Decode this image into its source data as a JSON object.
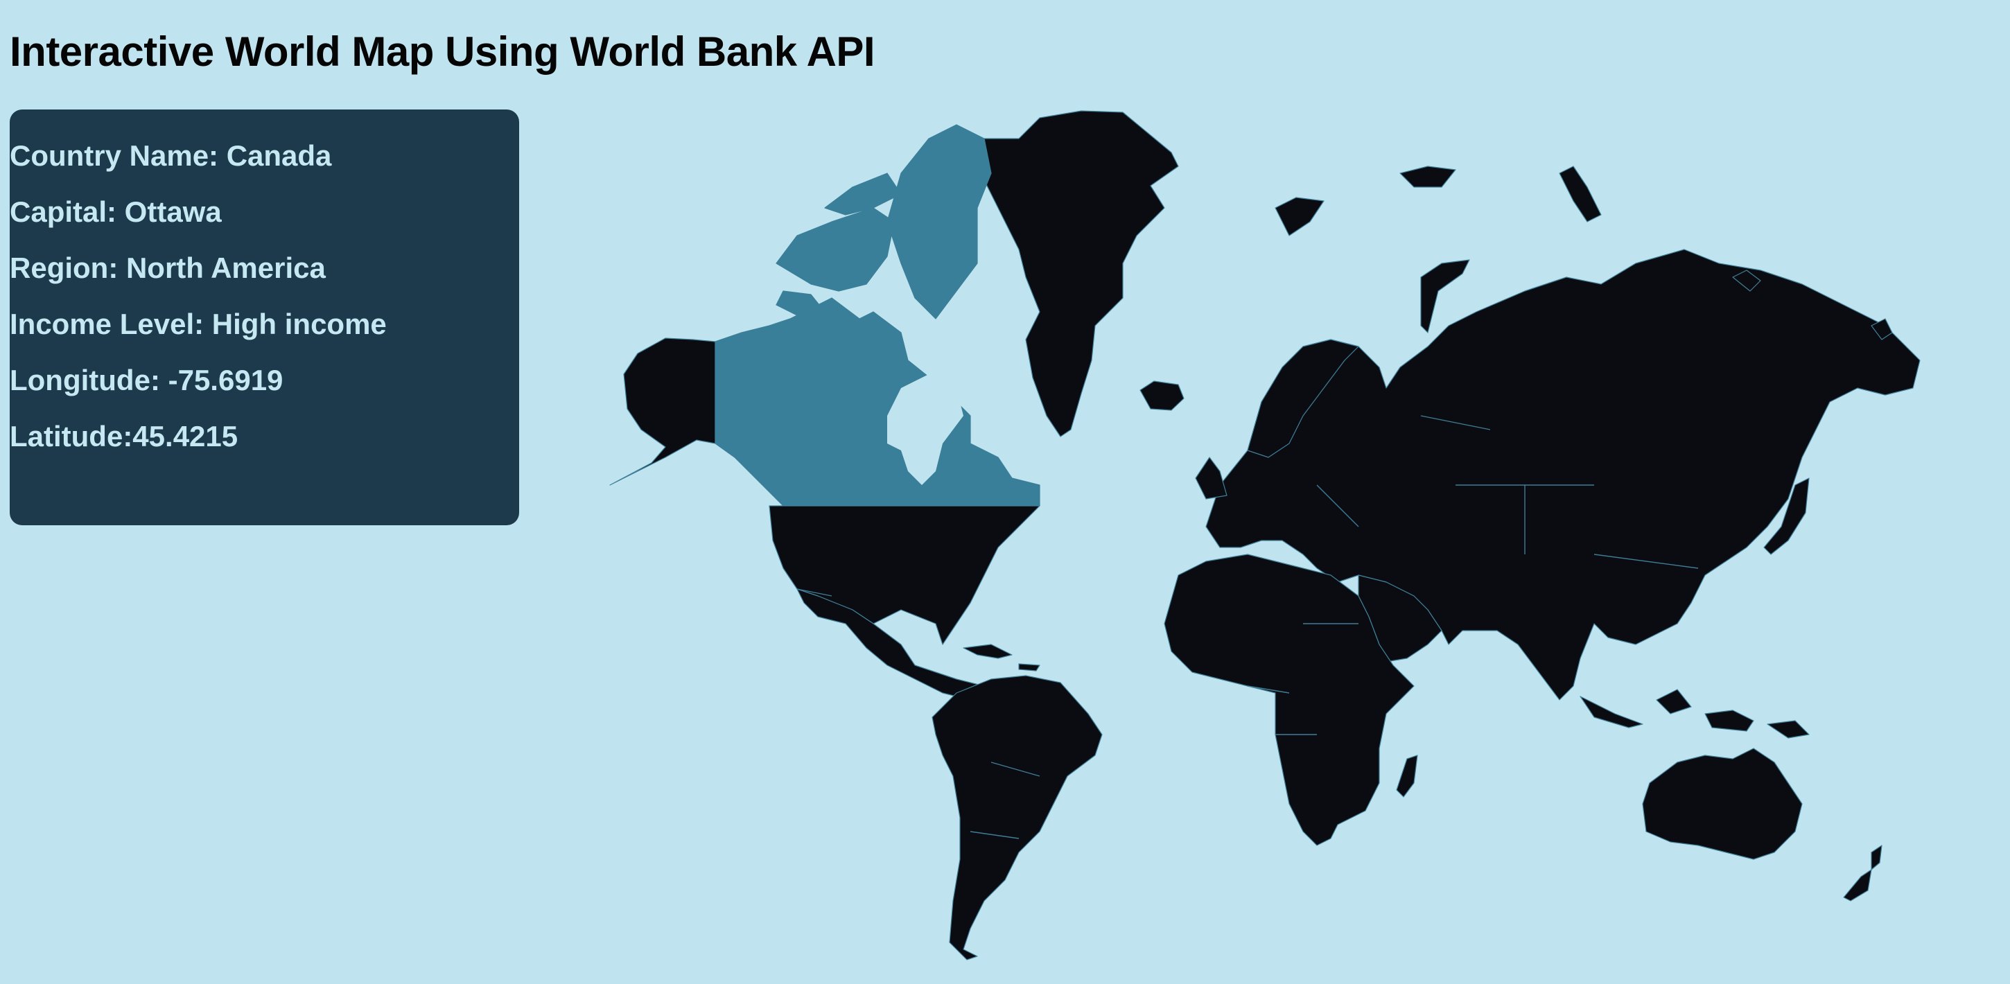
{
  "header": {
    "title": "Interactive World Map Using World Bank API"
  },
  "info": {
    "country_name": "Country Name: Canada",
    "capital": "Capital: Ottawa",
    "region": "Region: North America",
    "income_level": "Income Level: High income",
    "longitude": "Longitude: -75.6919",
    "latitude": "Latitude:45.4215"
  },
  "map": {
    "selected_country": "Canada",
    "colors": {
      "background": "#c0e4ef",
      "land": "#0b0c11",
      "selected": "#3a7f99",
      "border": "#3f7d96",
      "panel": "#1c3a4b",
      "panel_text": "#c6e8f3"
    }
  }
}
